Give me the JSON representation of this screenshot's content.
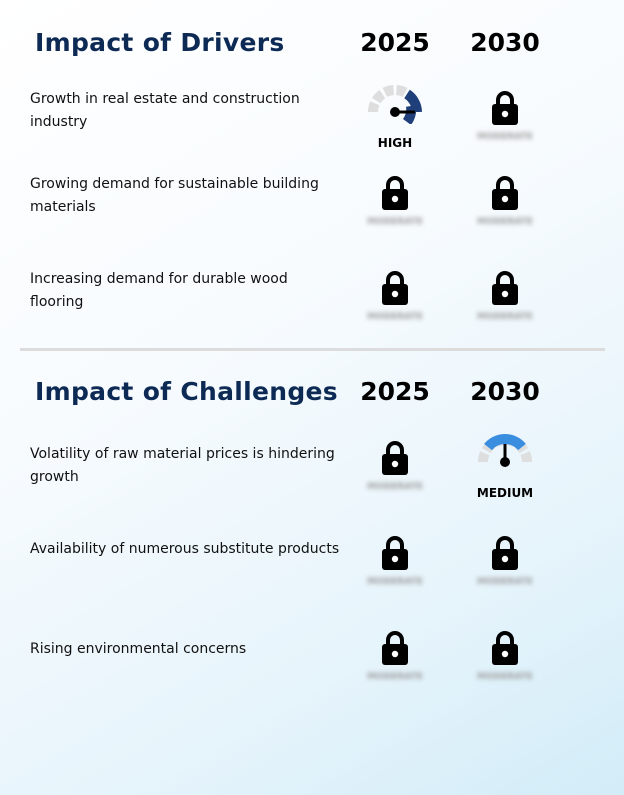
{
  "drivers": {
    "title": "Impact of Drivers",
    "year_1": "2025",
    "year_2": "2030",
    "rows": [
      {
        "label": "Growth in real estate and construction industry",
        "y2025": {
          "type": "gauge",
          "level": "HIGH",
          "color": "#1f3f7a"
        },
        "y2030": {
          "type": "locked",
          "hidden_text": "MODERATE"
        }
      },
      {
        "label": "Growing demand for sustainable building materials",
        "y2025": {
          "type": "locked",
          "hidden_text": "MODERATE"
        },
        "y2030": {
          "type": "locked",
          "hidden_text": "MODERATE"
        }
      },
      {
        "label": "Increasing demand for durable wood flooring",
        "y2025": {
          "type": "locked",
          "hidden_text": "MODERATE"
        },
        "y2030": {
          "type": "locked",
          "hidden_text": "MODERATE"
        }
      }
    ]
  },
  "challenges": {
    "title": "Impact of Challenges",
    "year_1": "2025",
    "year_2": "2030",
    "rows": [
      {
        "label": "Volatility of raw material prices is hindering growth",
        "y2025": {
          "type": "locked",
          "hidden_text": "MODERATE"
        },
        "y2030": {
          "type": "gauge",
          "level": "MEDIUM",
          "color": "#3a8ee0"
        }
      },
      {
        "label": "Availability of numerous substitute products",
        "y2025": {
          "type": "locked",
          "hidden_text": "MODERATE"
        },
        "y2030": {
          "type": "locked",
          "hidden_text": "MODERATE"
        }
      },
      {
        "label": "Rising environmental concerns",
        "y2025": {
          "type": "locked",
          "hidden_text": "MODERATE"
        },
        "y2030": {
          "type": "locked",
          "hidden_text": "MODERATE"
        }
      }
    ]
  },
  "colors": {
    "title": "#0d2a55",
    "gauge_track": "#dedede",
    "lock": "#000000"
  },
  "icons": {
    "lock": "lock-icon",
    "gauge": "gauge-icon"
  }
}
